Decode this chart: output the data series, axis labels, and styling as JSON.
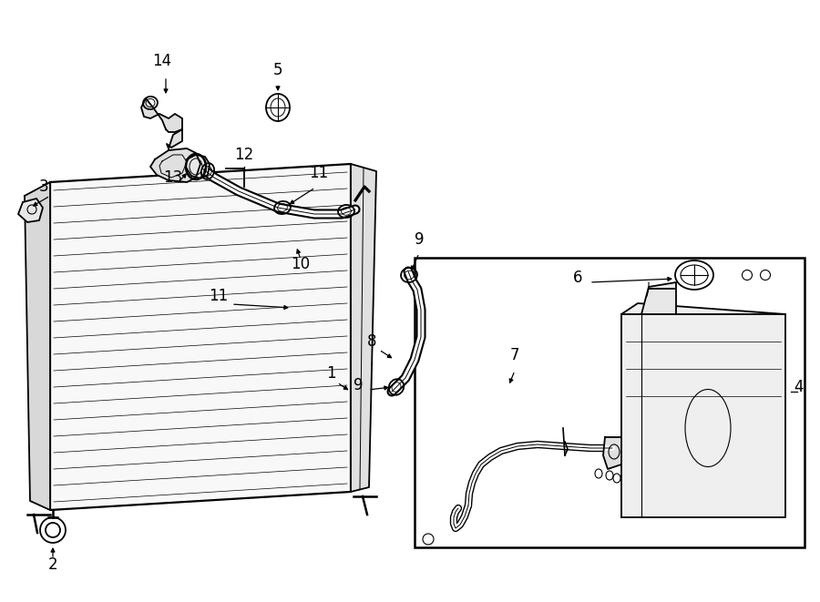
{
  "bg_color": "#ffffff",
  "line_color": "#000000",
  "lw": 1.3,
  "label_fontsize": 12,
  "fig_width": 9.0,
  "fig_height": 6.61,
  "dpi": 100
}
